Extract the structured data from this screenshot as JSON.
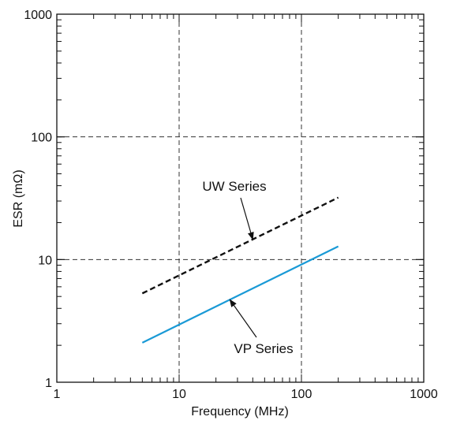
{
  "chart_data": {
    "type": "line",
    "xlabel": "Frequency (MHz)",
    "ylabel": "ESR (mΩ)",
    "x_scale": "log",
    "y_scale": "log",
    "xlim": [
      1,
      1000
    ],
    "ylim": [
      1,
      1000
    ],
    "x_ticks": [
      "1",
      "10",
      "100",
      "1000"
    ],
    "y_ticks": [
      "1",
      "10",
      "100",
      "1000"
    ],
    "grid": "dashed at decades",
    "series": [
      {
        "name": "UW Series",
        "style": "dashed",
        "color": "#111111",
        "x": [
          5,
          200
        ],
        "y": [
          5.3,
          32
        ]
      },
      {
        "name": "VP Series",
        "style": "solid",
        "color": "#1a9ad6",
        "x": [
          5,
          200
        ],
        "y": [
          2.1,
          12.8
        ]
      }
    ]
  }
}
